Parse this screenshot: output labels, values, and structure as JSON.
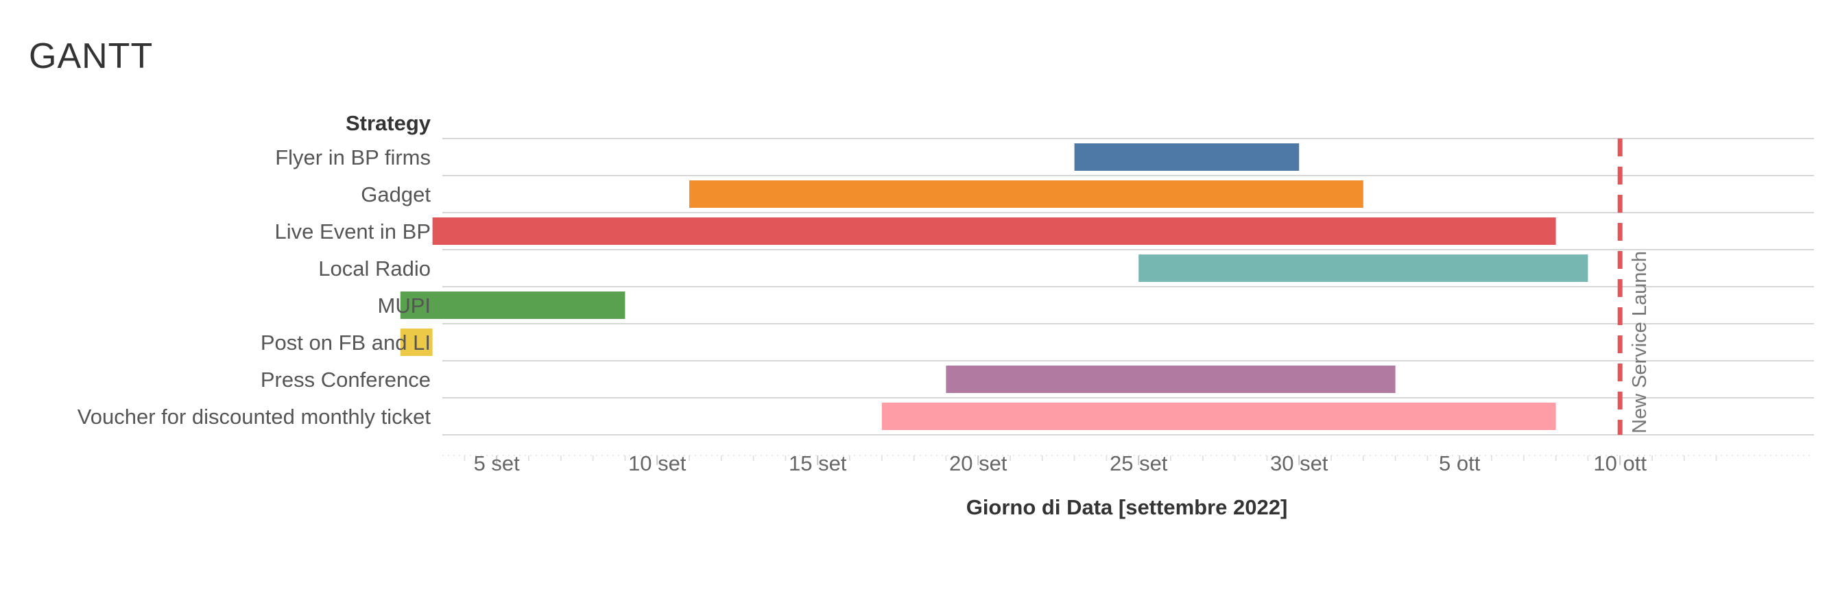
{
  "chart_data": {
    "type": "gantt",
    "title": "GANTT",
    "row_header": "Strategy",
    "xlabel": "Giorno di Data [settembre 2022]",
    "x_range": [
      "2022-08-31",
      "2022-10-13"
    ],
    "ticks": [
      {
        "date": "2022-09-05",
        "label": "5 set"
      },
      {
        "date": "2022-09-10",
        "label": "10 set"
      },
      {
        "date": "2022-09-15",
        "label": "15 set"
      },
      {
        "date": "2022-09-20",
        "label": "20 set"
      },
      {
        "date": "2022-09-25",
        "label": "25 set"
      },
      {
        "date": "2022-09-30",
        "label": "30 set"
      },
      {
        "date": "2022-10-05",
        "label": "5 ott"
      },
      {
        "date": "2022-10-10",
        "label": "10 ott"
      }
    ],
    "tasks": [
      {
        "name": "Flyer in BP firms",
        "start": "2022-09-23",
        "end": "2022-09-30",
        "color": "#4E79A7"
      },
      {
        "name": "Gadget",
        "start": "2022-09-11",
        "end": "2022-10-02",
        "color": "#F28E2B"
      },
      {
        "name": "Live Event in BP",
        "start": "2022-09-03",
        "end": "2022-10-08",
        "color": "#E15759"
      },
      {
        "name": "Local Radio",
        "start": "2022-09-25",
        "end": "2022-10-09",
        "color": "#76B7B2"
      },
      {
        "name": "MUPI",
        "start": "2022-09-02",
        "end": "2022-09-09",
        "color": "#59A14F"
      },
      {
        "name": "Post on FB and LI",
        "start": "2022-09-02",
        "end": "2022-09-03",
        "color": "#EDC948"
      },
      {
        "name": "Press Conference",
        "start": "2022-09-19",
        "end": "2022-10-03",
        "color": "#B07AA1"
      },
      {
        "name": "Voucher for discounted monthly ticket",
        "start": "2022-09-17",
        "end": "2022-10-08",
        "color": "#FF9DA7"
      }
    ],
    "reference_line": {
      "date": "2022-10-10",
      "label": "New Service Launch",
      "color": "#E15759",
      "style": "dashed"
    },
    "grid": {
      "horizontal_row_lines": true,
      "vertical": false
    }
  }
}
